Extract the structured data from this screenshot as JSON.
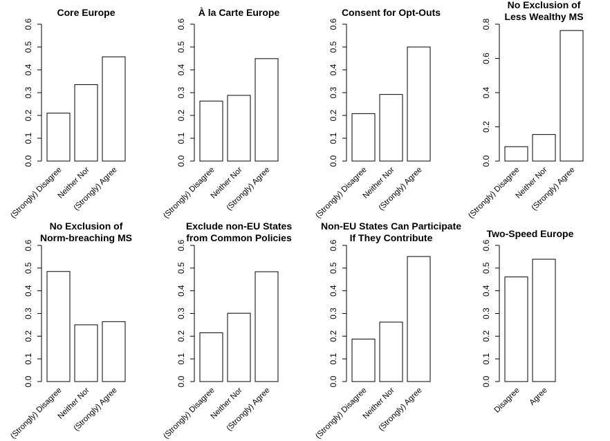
{
  "chart_data": [
    {
      "type": "bar",
      "title": [
        "Core Europe"
      ],
      "categories": [
        "(Strongly) Disagree",
        "Neither Nor",
        "(Strongly) Agree"
      ],
      "values": [
        0.21,
        0.335,
        0.457
      ],
      "ylim": [
        0,
        0.6
      ],
      "yticks": [
        "0.0",
        "0.1",
        "0.2",
        "0.3",
        "0.4",
        "0.5",
        "0.6"
      ]
    },
    {
      "type": "bar",
      "title": [
        "À la Carte Europe"
      ],
      "categories": [
        "(Strongly) Disagree",
        "Neither Nor",
        "(Strongly) Agree"
      ],
      "values": [
        0.263,
        0.288,
        0.449
      ],
      "ylim": [
        0,
        0.6
      ],
      "yticks": [
        "0.0",
        "0.1",
        "0.2",
        "0.3",
        "0.4",
        "0.5",
        "0.6"
      ]
    },
    {
      "type": "bar",
      "title": [
        "Consent for Opt-Outs"
      ],
      "categories": [
        "(Strongly) Disagree",
        "Neither Nor",
        "(Strongly) Agree"
      ],
      "values": [
        0.208,
        0.292,
        0.5
      ],
      "ylim": [
        0,
        0.6
      ],
      "yticks": [
        "0.0",
        "0.1",
        "0.2",
        "0.3",
        "0.4",
        "0.5",
        "0.6"
      ]
    },
    {
      "type": "bar",
      "title": [
        "No Exclusion of",
        "Less Wealthy MS"
      ],
      "categories": [
        "(Strongly) Disagree",
        "Neither Nor",
        "(Strongly) Agree"
      ],
      "values": [
        0.084,
        0.155,
        0.763
      ],
      "ylim": [
        0,
        0.8
      ],
      "yticks": [
        "0.0",
        "0.2",
        "0.4",
        "0.6",
        "0.8"
      ]
    },
    {
      "type": "bar",
      "title": [
        "No Exclusion of",
        "Norm-breaching MS"
      ],
      "categories": [
        "(Strongly) Disagree",
        "Neither Nor",
        "(Strongly) Agree"
      ],
      "values": [
        0.485,
        0.25,
        0.264
      ],
      "ylim": [
        0,
        0.6
      ],
      "yticks": [
        "0.0",
        "0.1",
        "0.2",
        "0.3",
        "0.4",
        "0.5",
        "0.6"
      ]
    },
    {
      "type": "bar",
      "title": [
        "Exclude non-EU States",
        "from Common Policies"
      ],
      "categories": [
        "(Strongly) Disagree",
        "Neither Nor",
        "(Strongly) Agree"
      ],
      "values": [
        0.215,
        0.301,
        0.484
      ],
      "ylim": [
        0,
        0.6
      ],
      "yticks": [
        "0.0",
        "0.1",
        "0.2",
        "0.3",
        "0.4",
        "0.5",
        "0.6"
      ]
    },
    {
      "type": "bar",
      "title": [
        "Non-EU States Can Participate",
        "If They Contribute"
      ],
      "categories": [
        "(Strongly) Disagree",
        "Neither Nor",
        "(Strongly) Agree"
      ],
      "values": [
        0.187,
        0.262,
        0.551
      ],
      "ylim": [
        0,
        0.6
      ],
      "yticks": [
        "0.0",
        "0.1",
        "0.2",
        "0.3",
        "0.4",
        "0.5",
        "0.6"
      ]
    },
    {
      "type": "bar",
      "title": [
        "Two-Speed Europe"
      ],
      "categories": [
        "Disagree",
        "Agree"
      ],
      "values": [
        0.461,
        0.539
      ],
      "ylim": [
        0,
        0.6
      ],
      "yticks": [
        "0.0",
        "0.1",
        "0.2",
        "0.3",
        "0.4",
        "0.5",
        "0.6"
      ]
    }
  ]
}
